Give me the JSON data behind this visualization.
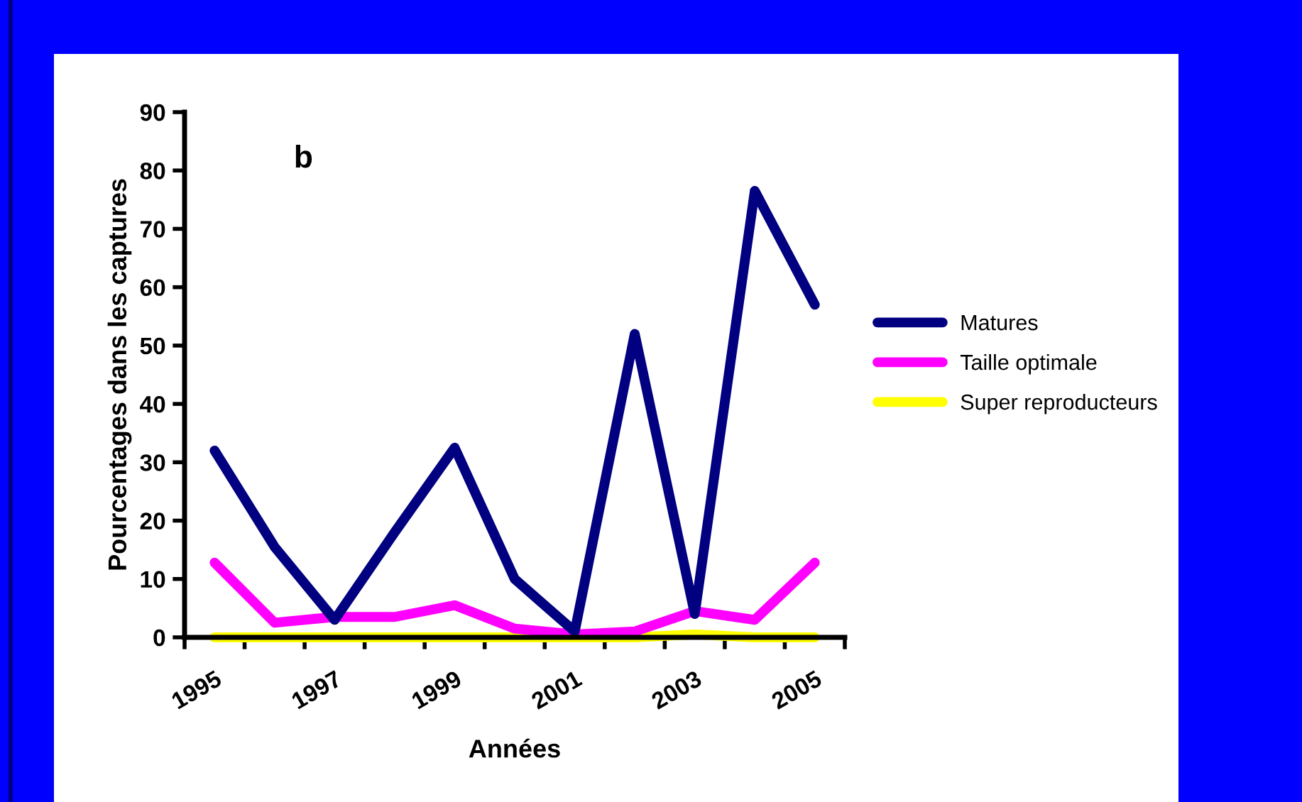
{
  "chart_data": {
    "type": "line",
    "xlabel": "Années",
    "ylabel": "Pourcentages dans les captures",
    "annotations": [
      "b"
    ],
    "categories": [
      "1995",
      null,
      "1997",
      null,
      "1999",
      null,
      "2001",
      null,
      "2003",
      null,
      "2005"
    ],
    "series": [
      {
        "name": "Matures",
        "color": "#000080",
        "values": [
          32,
          15.5,
          3,
          18,
          32.5,
          10,
          1,
          52,
          4,
          76.5,
          57
        ]
      },
      {
        "name": "Taille optimale",
        "color": "#ff00ff",
        "values": [
          12.8,
          2.5,
          3.5,
          3.5,
          5.5,
          1.5,
          0.5,
          1,
          4.5,
          3,
          12.8
        ]
      },
      {
        "name": "Super reproducteurs",
        "color": "#ffff00",
        "values": [
          0,
          0,
          0,
          0,
          0,
          0,
          0,
          0,
          0.5,
          0,
          0
        ]
      }
    ],
    "ylim": [
      0,
      90
    ],
    "yticks": [
      0,
      10,
      20,
      30,
      40,
      50,
      60,
      70,
      80,
      90
    ],
    "grid": false,
    "legend": "right",
    "line_style": "solid",
    "marker": "none"
  }
}
